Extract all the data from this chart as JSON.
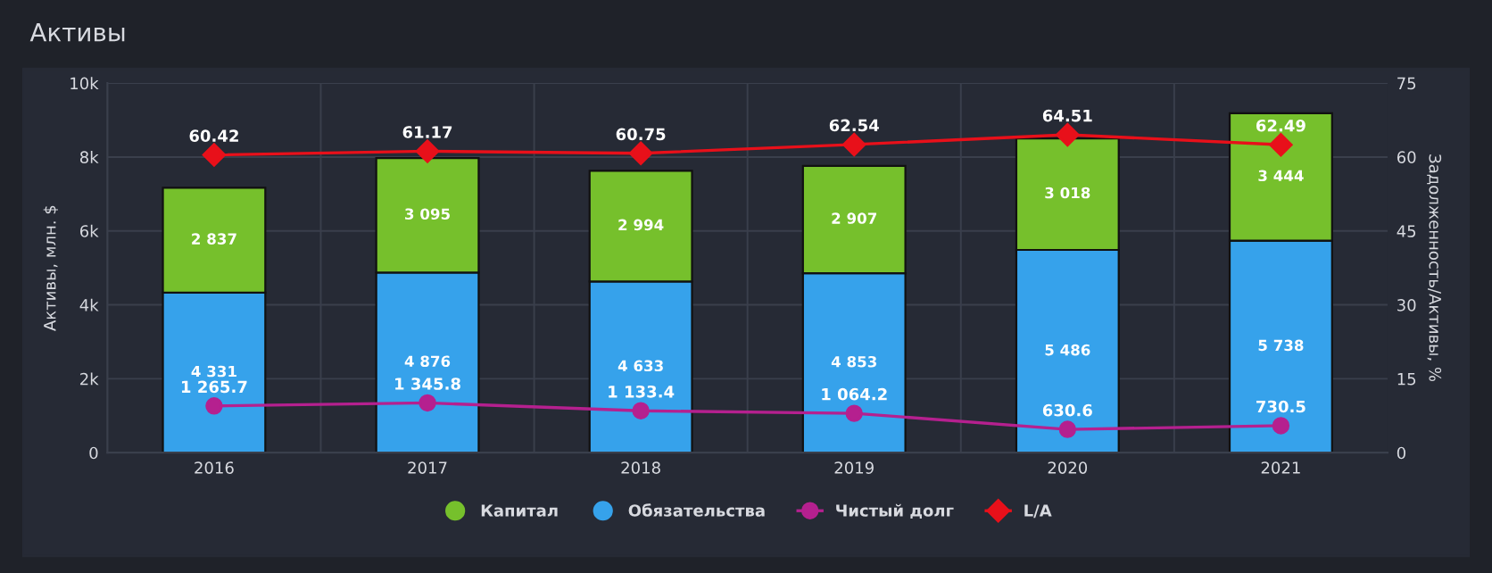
{
  "chart_data": {
    "type": "bar",
    "title": "Активы",
    "ylabel": "Активы, млн. $",
    "y2label": "Задолженность/Активы, %",
    "categories": [
      "2016",
      "2017",
      "2018",
      "2019",
      "2020",
      "2021"
    ],
    "stacked": true,
    "series": [
      {
        "name": "Обязательства",
        "color": "#36a2eb",
        "values": [
          4331,
          4876,
          4633,
          4853,
          5486,
          5738
        ],
        "value_labels": [
          "4 331",
          "4 876",
          "4 633",
          "4 853",
          "5 486",
          "5 738"
        ]
      },
      {
        "name": "Капитал",
        "color": "#76c02c",
        "values": [
          2837,
          3095,
          2994,
          2907,
          3018,
          3444
        ],
        "value_labels": [
          "2 837",
          "3 095",
          "2 994",
          "2 907",
          "3 018",
          "3 444"
        ]
      },
      {
        "name": "Чистый долг",
        "type": "line",
        "color": "#b5208f",
        "marker": "circle",
        "values": [
          1265.7,
          1345.8,
          1133.4,
          1064.2,
          630.6,
          730.5
        ],
        "value_labels": [
          "1 265.7",
          "1 345.8",
          "1 133.4",
          "1 064.2",
          "630.6",
          "730.5"
        ]
      },
      {
        "name": "L/A",
        "type": "line",
        "axis": "y2",
        "color": "#e8101a",
        "marker": "diamond",
        "values": [
          60.42,
          61.17,
          60.75,
          62.54,
          64.51,
          62.49
        ],
        "value_labels": [
          "60.42",
          "61.17",
          "60.75",
          "62.54",
          "64.51",
          "62.49"
        ]
      }
    ],
    "ylim": [
      0,
      10000
    ],
    "yticks": [
      0,
      {
        "value": 2000,
        "label": "2k"
      },
      {
        "value": 4000,
        "label": "4k"
      },
      {
        "value": 6000,
        "label": "6k"
      },
      {
        "value": 8000,
        "label": "8k"
      },
      {
        "value": 10000,
        "label": "10k"
      }
    ],
    "y2lim": [
      0,
      75
    ],
    "y2ticks": [
      0,
      15,
      30,
      45,
      60,
      75
    ],
    "grid": true,
    "legend": "bottom"
  }
}
